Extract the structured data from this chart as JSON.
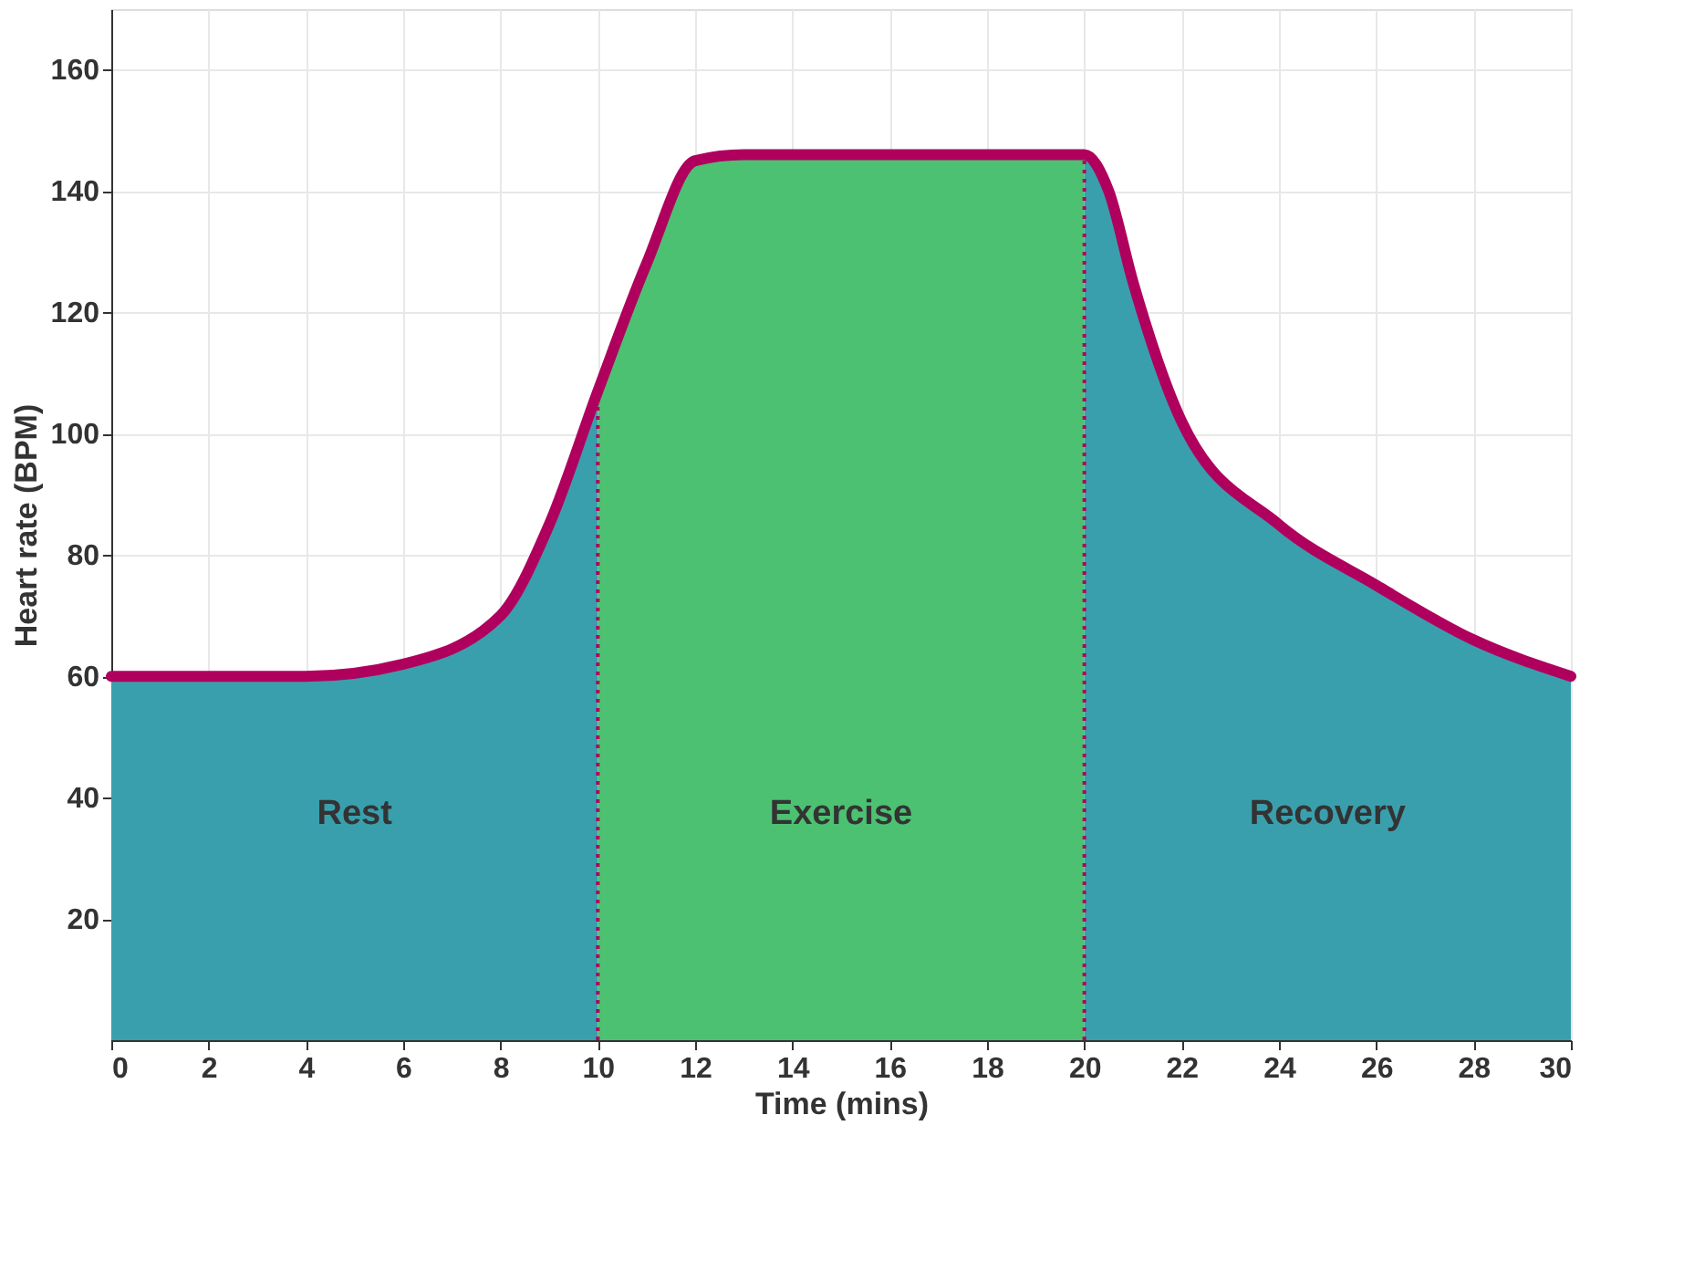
{
  "chart_data": {
    "type": "area",
    "xlabel": "Time (mins)",
    "ylabel": "Heart rate (BPM)",
    "x": [
      0,
      2,
      4,
      6,
      8,
      9,
      10,
      11,
      12,
      13,
      14,
      16,
      18,
      20,
      20.5,
      21,
      22,
      24,
      26,
      28,
      30
    ],
    "series": [
      {
        "color": "#3a9fad",
        "values": [
          60,
          60,
          60,
          62,
          70,
          85,
          107,
          null,
          null,
          null,
          null,
          null,
          null,
          146,
          140,
          125,
          102,
          85,
          75,
          66,
          60
        ]
      },
      {
        "color": "#4cc172",
        "x": [
          10,
          11,
          12,
          13,
          14,
          16,
          18,
          20
        ],
        "values": [
          107,
          128,
          145,
          146,
          146,
          146,
          146,
          146
        ]
      },
      {
        "type": "line",
        "color": "#b0005e",
        "values": [
          60,
          60,
          60,
          62,
          70,
          85,
          107,
          128,
          145,
          146,
          146,
          146,
          146,
          146,
          140,
          125,
          102,
          85,
          75,
          66,
          60
        ]
      }
    ],
    "ref_lines": [
      {
        "axis": "x",
        "value": 10,
        "color": "#b0005e",
        "line_style": "dotted"
      },
      {
        "axis": "x",
        "value": 20,
        "color": "#b0005e",
        "line_style": "dotted"
      }
    ],
    "annotations": [
      "Rest",
      "Exercise",
      "Recovery"
    ],
    "xlim": [
      0,
      30
    ],
    "xticks": [
      0,
      2,
      4,
      6,
      8,
      10,
      12,
      14,
      16,
      18,
      20,
      22,
      24,
      26,
      28,
      30
    ],
    "ylim": [
      0,
      170
    ],
    "yticks": [
      20,
      40,
      60,
      80,
      100,
      120,
      140,
      160
    ],
    "grid": true,
    "marker": "none",
    "line_style": "solid"
  }
}
